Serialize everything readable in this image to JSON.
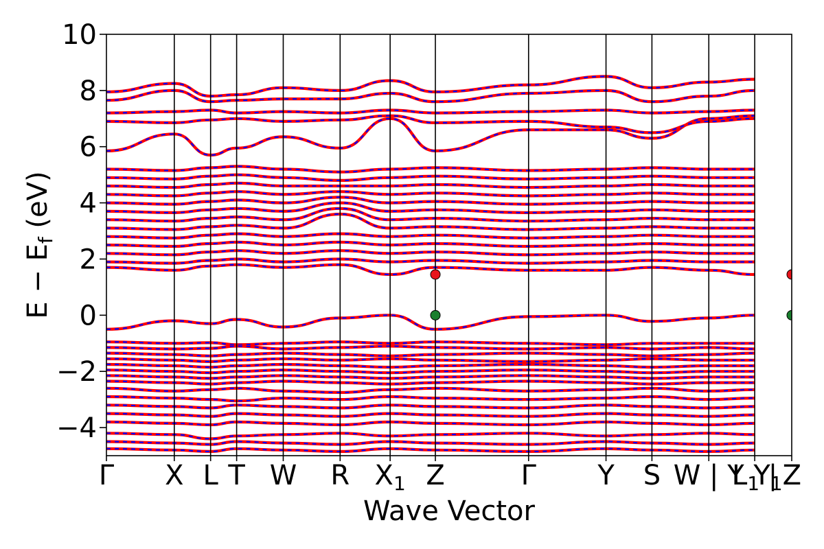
{
  "chart_data": {
    "type": "line",
    "title": "",
    "xlabel": "Wave Vector",
    "ylabel": "E − E",
    "ylabel_sub": "f",
    "ylabel_unit": " (eV)",
    "ylim": [
      -5,
      10
    ],
    "yticks": [
      {
        "value": 10,
        "label": "10"
      },
      {
        "value": 8,
        "label": "8"
      },
      {
        "value": 6,
        "label": "6"
      },
      {
        "value": 4,
        "label": "4"
      },
      {
        "value": 2,
        "label": "2"
      },
      {
        "value": 0,
        "label": "0"
      },
      {
        "value": -2,
        "label": "−2"
      },
      {
        "value": -4,
        "label": "−4"
      }
    ],
    "kpath_length": 1.0,
    "kpoints": [
      {
        "pos": 0.0,
        "label": "Γ"
      },
      {
        "pos": 0.099,
        "label": "X"
      },
      {
        "pos": 0.152,
        "label": "L"
      },
      {
        "pos": 0.19,
        "label": "T"
      },
      {
        "pos": 0.258,
        "label": "W"
      },
      {
        "pos": 0.341,
        "label": "R"
      },
      {
        "pos": 0.414,
        "label": "X",
        "sub": "1"
      },
      {
        "pos": 0.48,
        "label": "Z"
      },
      {
        "pos": 0.616,
        "label": "Γ"
      },
      {
        "pos": 0.729,
        "label": "Y"
      },
      {
        "pos": 0.796,
        "label": "S"
      },
      {
        "pos": 0.879,
        "label": "W | Y"
      },
      {
        "pos": 0.946,
        "label": "L",
        "sub": "1",
        "suffix": " | "
      },
      {
        "pos": 1.0,
        "label": "Y",
        "sub": "1",
        "after": "Z"
      }
    ],
    "grid": false,
    "legend": "none",
    "colors": {
      "primary": "#ff0000",
      "secondary": "#0000ff",
      "cbm_marker": "#e8141b",
      "vbm_marker": "#1a7f2e"
    },
    "band_extrema": [
      {
        "name": "CBM",
        "k": 0.48,
        "energy": 1.45
      },
      {
        "name": "CBM",
        "k": 1.0,
        "energy": 1.45
      },
      {
        "name": "VBM",
        "k": 0.48,
        "energy": 0.0
      },
      {
        "name": "VBM",
        "k": 1.0,
        "energy": 0.0
      }
    ],
    "bands": [
      [
        -0.5,
        -0.2,
        -0.3,
        -0.15,
        -0.42,
        -0.1,
        0.0,
        -0.5,
        -0.05,
        0.0,
        -0.22,
        -0.1,
        0.0
      ],
      [
        -0.95,
        -1.0,
        -0.98,
        -1.05,
        -1.0,
        -0.95,
        -1.0,
        -0.95,
        -1.0,
        -1.05,
        -1.0,
        -1.0,
        -1.0
      ],
      [
        -1.15,
        -1.2,
        -1.18,
        -1.1,
        -1.2,
        -1.15,
        -1.1,
        -1.15,
        -1.2,
        -1.15,
        -1.2,
        -1.15,
        -1.2
      ],
      [
        -1.35,
        -1.4,
        -1.45,
        -1.4,
        -1.35,
        -1.4,
        -1.45,
        -1.4,
        -1.35,
        -1.4,
        -1.45,
        -1.4,
        -1.35
      ],
      [
        -1.55,
        -1.6,
        -1.65,
        -1.6,
        -1.55,
        -1.6,
        -1.55,
        -1.6,
        -1.65,
        -1.6,
        -1.55,
        -1.6,
        -1.6
      ],
      [
        -1.75,
        -1.8,
        -1.85,
        -1.8,
        -1.75,
        -1.8,
        -1.85,
        -1.8,
        -1.75,
        -1.8,
        -1.85,
        -1.8,
        -1.8
      ],
      [
        -1.95,
        -2.0,
        -2.05,
        -2.0,
        -1.95,
        -2.0,
        -2.05,
        -2.0,
        -1.95,
        -2.0,
        -2.05,
        -2.0,
        -2.0
      ],
      [
        -2.15,
        -2.2,
        -2.25,
        -2.2,
        -2.15,
        -2.2,
        -2.25,
        -2.2,
        -2.15,
        -2.2,
        -2.25,
        -2.2,
        -2.2
      ],
      [
        -2.35,
        -2.4,
        -2.45,
        -2.4,
        -2.35,
        -2.4,
        -2.45,
        -2.4,
        -2.35,
        -2.4,
        -2.45,
        -2.4,
        -2.4
      ],
      [
        -2.6,
        -2.7,
        -2.65,
        -2.6,
        -2.7,
        -2.75,
        -2.65,
        -2.6,
        -2.7,
        -2.65,
        -2.6,
        -2.7,
        -2.65
      ],
      [
        -2.9,
        -2.95,
        -3.0,
        -3.05,
        -2.95,
        -3.0,
        -2.9,
        -2.95,
        -3.0,
        -2.95,
        -2.9,
        -3.0,
        -2.95
      ],
      [
        -3.2,
        -3.25,
        -3.3,
        -3.2,
        -3.25,
        -3.3,
        -3.2,
        -3.25,
        -3.3,
        -3.2,
        -3.25,
        -3.3,
        -3.25
      ],
      [
        -3.5,
        -3.55,
        -3.6,
        -3.5,
        -3.55,
        -3.6,
        -3.5,
        -3.55,
        -3.6,
        -3.5,
        -3.55,
        -3.6,
        -3.55
      ],
      [
        -3.8,
        -3.85,
        -3.9,
        -3.8,
        -3.85,
        -3.9,
        -3.8,
        -3.85,
        -3.9,
        -3.8,
        -3.85,
        -3.9,
        -3.85
      ],
      [
        -4.2,
        -4.25,
        -4.4,
        -4.3,
        -4.25,
        -4.2,
        -4.3,
        -4.25,
        -4.2,
        -4.3,
        -4.25,
        -4.2,
        -4.25
      ],
      [
        -4.5,
        -4.55,
        -4.6,
        -4.5,
        -4.55,
        -4.6,
        -4.5,
        -4.55,
        -4.6,
        -4.5,
        -4.55,
        -4.6,
        -4.55
      ],
      [
        -4.75,
        -4.8,
        -4.85,
        -4.75,
        -4.8,
        -4.85,
        -4.75,
        -4.8,
        -4.85,
        -4.75,
        -4.8,
        -4.85,
        -4.8
      ],
      [
        1.7,
        1.6,
        1.75,
        1.8,
        1.7,
        1.8,
        1.45,
        1.7,
        1.6,
        1.6,
        1.7,
        1.6,
        1.45
      ],
      [
        1.9,
        1.85,
        1.95,
        2.0,
        1.9,
        2.0,
        1.9,
        1.95,
        1.85,
        1.9,
        1.95,
        1.9,
        1.9
      ],
      [
        2.2,
        2.15,
        2.25,
        2.3,
        2.2,
        2.3,
        2.2,
        2.25,
        2.15,
        2.2,
        2.25,
        2.2,
        2.2
      ],
      [
        2.5,
        2.45,
        2.55,
        2.6,
        2.5,
        2.6,
        2.5,
        2.55,
        2.45,
        2.5,
        2.55,
        2.5,
        2.5
      ],
      [
        2.8,
        2.75,
        2.85,
        2.9,
        2.8,
        2.9,
        2.8,
        2.85,
        2.75,
        2.8,
        2.85,
        2.8,
        2.8
      ],
      [
        3.1,
        3.05,
        3.15,
        3.2,
        3.1,
        3.6,
        3.1,
        3.15,
        3.05,
        3.1,
        3.15,
        3.1,
        3.1
      ],
      [
        3.4,
        3.35,
        3.45,
        3.5,
        3.4,
        3.8,
        3.4,
        3.45,
        3.35,
        3.4,
        3.45,
        3.4,
        3.4
      ],
      [
        3.7,
        3.65,
        3.75,
        3.8,
        3.7,
        4.0,
        3.7,
        3.75,
        3.65,
        3.7,
        3.75,
        3.7,
        3.7
      ],
      [
        4.0,
        3.95,
        4.05,
        4.1,
        4.0,
        4.2,
        4.0,
        4.05,
        3.95,
        4.0,
        4.05,
        4.0,
        4.0
      ],
      [
        4.3,
        4.25,
        4.35,
        4.4,
        4.3,
        4.4,
        4.3,
        4.35,
        4.25,
        4.3,
        4.35,
        4.3,
        4.3
      ],
      [
        4.6,
        4.55,
        4.65,
        4.7,
        4.6,
        4.6,
        4.6,
        4.65,
        4.55,
        4.6,
        4.65,
        4.6,
        4.6
      ],
      [
        4.9,
        4.85,
        4.95,
        5.0,
        4.9,
        4.8,
        4.9,
        4.95,
        4.85,
        4.9,
        4.95,
        4.9,
        4.9
      ],
      [
        5.2,
        5.15,
        5.25,
        5.3,
        5.2,
        5.1,
        5.2,
        5.25,
        5.15,
        5.2,
        5.25,
        5.2,
        5.2
      ],
      [
        5.85,
        6.45,
        5.7,
        5.95,
        6.35,
        5.95,
        7.0,
        5.85,
        6.6,
        6.6,
        6.3,
        7.0,
        7.1
      ],
      [
        6.9,
        6.85,
        6.95,
        7.0,
        6.9,
        6.95,
        7.1,
        6.85,
        6.9,
        6.7,
        6.5,
        6.9,
        7.0
      ],
      [
        7.2,
        7.25,
        7.3,
        7.2,
        7.25,
        7.2,
        7.3,
        7.2,
        7.25,
        7.3,
        7.2,
        7.25,
        7.3
      ],
      [
        7.65,
        8.0,
        7.6,
        7.65,
        7.7,
        7.7,
        7.9,
        7.6,
        7.9,
        8.0,
        7.6,
        7.8,
        8.0
      ],
      [
        7.95,
        8.25,
        7.8,
        7.85,
        8.1,
        8.0,
        8.35,
        7.95,
        8.2,
        8.5,
        8.1,
        8.3,
        8.4
      ]
    ]
  }
}
